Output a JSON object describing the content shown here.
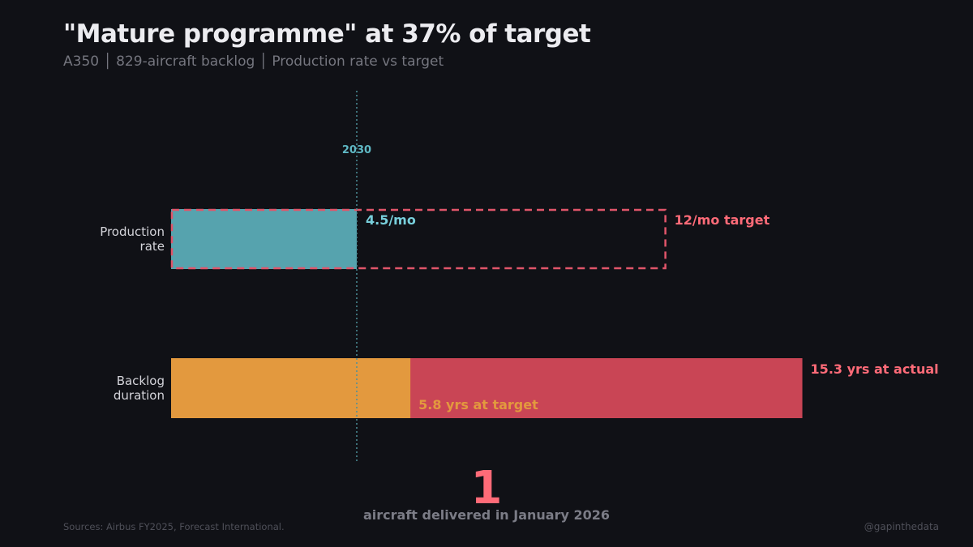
{
  "header": {
    "title": "\"Mature programme\" at 37% of target",
    "subtitle": "A350 │ 829-aircraft backlog │ Production rate vs target"
  },
  "chart_data": {
    "type": "bar",
    "orientation": "horizontal",
    "categories": [
      "Production rate",
      "Backlog duration"
    ],
    "category_lines": [
      [
        "Production",
        "rate"
      ],
      [
        "Backlog",
        "duration"
      ]
    ],
    "series": [
      {
        "name": "Production rate actual",
        "category": "Production rate",
        "value": 4.5,
        "unit": "/mo",
        "label": "4.5/mo",
        "color": "#56a3ae"
      },
      {
        "name": "Production rate target",
        "category": "Production rate",
        "value": 12,
        "unit": "/mo",
        "label": "12/mo target",
        "color": "#e0556a",
        "style": "dashed-outline"
      },
      {
        "name": "Backlog at target",
        "category": "Backlog duration",
        "value": 5.8,
        "unit": "yrs",
        "label": "5.8 yrs at target",
        "color": "#e3993e"
      },
      {
        "name": "Backlog at actual",
        "category": "Backlog duration",
        "value": 15.3,
        "unit": "yrs",
        "label": "15.3 yrs at actual",
        "color": "#c94555"
      }
    ],
    "reference_line": {
      "value": 4.5,
      "label": "2030",
      "color": "#5fb8c4"
    },
    "xlim": [
      0,
      19.2
    ],
    "grid": false
  },
  "callout": {
    "number": "1",
    "text": "aircraft delivered in January 2026"
  },
  "footer": {
    "sources": "Sources: Airbus FY2025, Forecast International.",
    "handle": "@gapinthedata"
  }
}
